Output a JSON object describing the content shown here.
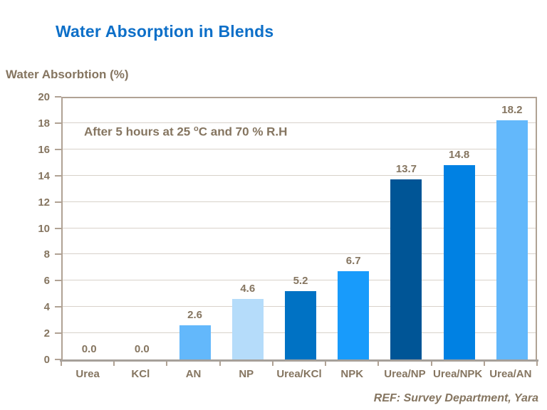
{
  "page": {
    "title": "Water Absorption in Blends",
    "footer": "REF: Survey Department, Yara"
  },
  "chart_data": {
    "type": "bar",
    "title": "Water Absorption in Blends",
    "ylabel": "Water Absorbtion (%)",
    "xlabel": "",
    "annotation": {
      "prefix": "After 5 hours at 25 ",
      "sup": "o",
      "suffix": "C and 70 % R.H"
    },
    "categories": [
      "Urea",
      "KCl",
      "AN",
      "NP",
      "Urea/KCl",
      "NPK",
      "Urea/NP",
      "Urea/NPK",
      "Urea/AN"
    ],
    "values": [
      0.0,
      0.0,
      2.6,
      4.6,
      5.2,
      6.7,
      13.7,
      14.8,
      18.2
    ],
    "value_labels": [
      "0.0",
      "0.0",
      "2.6",
      "4.6",
      "5.2",
      "6.7",
      "13.7",
      "14.8",
      "18.2"
    ],
    "bar_colors": [
      "#63b8fb",
      "#63b8fb",
      "#63b8fb",
      "#b5dcfa",
      "#0072c4",
      "#189bfb",
      "#005596",
      "#0081e3",
      "#63b8fb"
    ],
    "ylim": [
      0,
      20
    ],
    "yticks": [
      0,
      2,
      4,
      6,
      8,
      10,
      12,
      14,
      16,
      18,
      20
    ],
    "grid": true,
    "legend": false,
    "colors": {
      "title": "#0d6fc8",
      "text": "#857560",
      "axis": "#b0a294",
      "baseline": "#a6a09a",
      "gridline": "#d8d2ca"
    }
  }
}
